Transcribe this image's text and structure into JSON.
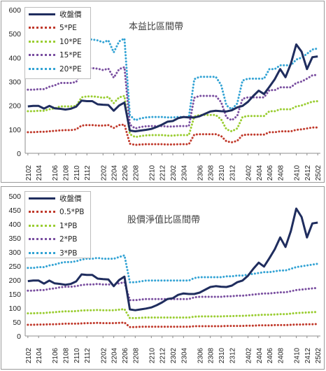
{
  "chart_data": [
    {
      "type": "line",
      "title": "本益比區間帶",
      "xlabel": "",
      "ylabel": "",
      "ylim": [
        0,
        600
      ],
      "yticks": [
        "0",
        "100",
        "200",
        "300",
        "400",
        "500",
        "600"
      ],
      "x_labels": [
        "2102",
        "2104",
        "2106",
        "2108",
        "2110",
        "2112",
        "2202",
        "2204",
        "2206",
        "2208",
        "2210",
        "2212",
        "2302",
        "2304",
        "2306",
        "2308",
        "2310",
        "2312",
        "2402",
        "2404",
        "2406",
        "2408",
        "2410",
        "2412",
        "2502"
      ],
      "legend_position": "top-left",
      "grid": false,
      "series": [
        {
          "name": "收盤價",
          "color": "#1f2d5e",
          "style": "solid",
          "values": [
            196,
            198,
            198,
            187,
            198,
            188,
            186,
            183,
            186,
            195,
            220,
            218,
            218,
            205,
            203,
            202,
            178,
            200,
            212,
            95,
            92,
            95,
            98,
            102,
            110,
            120,
            132,
            135,
            147,
            152,
            150,
            150,
            155,
            165,
            175,
            178,
            176,
            175,
            180,
            192,
            198,
            215,
            240,
            262,
            248,
            278,
            310,
            352,
            318,
            375,
            455,
            425,
            352,
            402,
            405
          ]
        },
        {
          "name": "5*PE",
          "color": "#c0392b",
          "style": "dotted",
          "values": [
            88,
            88,
            90,
            90,
            92,
            94,
            96,
            97,
            97,
            100,
            116,
            118,
            118,
            116,
            116,
            118,
            106,
            118,
            120,
            40,
            35,
            37,
            38,
            38,
            38,
            38,
            37,
            37,
            38,
            38,
            38,
            78,
            80,
            80,
            80,
            80,
            72,
            50,
            46,
            52,
            76,
            78,
            78,
            78,
            78,
            88,
            88,
            92,
            92,
            92,
            98,
            100,
            104,
            108,
            108
          ]
        },
        {
          "name": "10*PE",
          "color": "#9acd32",
          "style": "dotted",
          "values": [
            176,
            176,
            178,
            178,
            184,
            188,
            196,
            196,
            196,
            198,
            234,
            238,
            238,
            236,
            232,
            236,
            210,
            234,
            240,
            80,
            68,
            72,
            75,
            76,
            76,
            76,
            74,
            74,
            76,
            76,
            76,
            154,
            160,
            160,
            160,
            160,
            142,
            100,
            92,
            104,
            152,
            156,
            156,
            156,
            156,
            176,
            176,
            184,
            184,
            184,
            196,
            200,
            208,
            216,
            218
          ]
        },
        {
          "name": "15*PE",
          "color": "#7a4fa0",
          "style": "dotted",
          "values": [
            266,
            266,
            268,
            268,
            278,
            284,
            294,
            294,
            294,
            298,
            352,
            356,
            356,
            354,
            348,
            354,
            316,
            352,
            360,
            120,
            104,
            110,
            113,
            114,
            114,
            114,
            112,
            112,
            114,
            114,
            114,
            232,
            240,
            240,
            240,
            240,
            214,
            150,
            138,
            156,
            228,
            234,
            234,
            234,
            234,
            264,
            264,
            276,
            276,
            276,
            294,
            300,
            312,
            326,
            328
          ]
        },
        {
          "name": "20*PE",
          "color": "#33a3d4",
          "style": "dotted",
          "values": [
            356,
            356,
            358,
            358,
            370,
            378,
            392,
            392,
            392,
            396,
            470,
            476,
            476,
            472,
            464,
            472,
            422,
            468,
            480,
            160,
            138,
            146,
            150,
            152,
            152,
            152,
            150,
            150,
            152,
            152,
            152,
            310,
            320,
            320,
            320,
            320,
            286,
            200,
            184,
            208,
            304,
            312,
            312,
            312,
            312,
            352,
            352,
            368,
            368,
            368,
            392,
            400,
            416,
            434,
            438
          ]
        }
      ]
    },
    {
      "type": "line",
      "title": "股價淨值比區間帶",
      "xlabel": "",
      "ylabel": "",
      "ylim": [
        0,
        500
      ],
      "yticks": [
        "0",
        "50",
        "100",
        "150",
        "200",
        "250",
        "300",
        "350",
        "400",
        "450",
        "500"
      ],
      "x_labels": [
        "2102",
        "2104",
        "2106",
        "2108",
        "2110",
        "2112",
        "2202",
        "2204",
        "2206",
        "2208",
        "2210",
        "2212",
        "2302",
        "2304",
        "2306",
        "2308",
        "2310",
        "2312",
        "2402",
        "2404",
        "2406",
        "2408",
        "2410",
        "2412",
        "2502"
      ],
      "legend_position": "top-left",
      "grid": false,
      "series": [
        {
          "name": "收盤價",
          "color": "#1f2d5e",
          "style": "solid",
          "values": [
            196,
            198,
            198,
            187,
            198,
            188,
            186,
            183,
            186,
            195,
            220,
            218,
            218,
            205,
            203,
            202,
            178,
            200,
            212,
            95,
            92,
            95,
            98,
            102,
            110,
            120,
            132,
            135,
            147,
            152,
            150,
            150,
            155,
            165,
            175,
            178,
            176,
            175,
            180,
            192,
            198,
            215,
            240,
            262,
            248,
            278,
            310,
            352,
            318,
            375,
            455,
            425,
            352,
            402,
            405
          ]
        },
        {
          "name": "0.5*PB",
          "color": "#c0392b",
          "style": "dotted",
          "values": [
            40,
            40,
            41,
            41,
            42,
            42,
            43,
            44,
            44,
            44,
            45,
            46,
            46,
            47,
            46,
            46,
            46,
            47,
            48,
            32,
            32,
            33,
            33,
            33,
            33,
            33,
            33,
            33,
            33,
            33,
            33,
            35,
            35,
            35,
            35,
            35,
            35,
            36,
            36,
            36,
            36,
            37,
            37,
            38,
            38,
            38,
            39,
            39,
            39,
            40,
            41,
            41,
            42,
            42,
            43
          ]
        },
        {
          "name": "1*PB",
          "color": "#9acd32",
          "style": "dotted",
          "values": [
            81,
            81,
            82,
            82,
            84,
            85,
            87,
            88,
            88,
            89,
            91,
            92,
            92,
            93,
            92,
            92,
            92,
            94,
            96,
            64,
            64,
            65,
            66,
            66,
            66,
            66,
            66,
            66,
            66,
            66,
            66,
            69,
            70,
            70,
            70,
            70,
            70,
            71,
            71,
            72,
            72,
            73,
            74,
            75,
            76,
            76,
            77,
            78,
            78,
            80,
            82,
            83,
            84,
            85,
            86
          ]
        },
        {
          "name": "2*PB",
          "color": "#7a4fa0",
          "style": "dotted",
          "values": [
            162,
            162,
            164,
            164,
            168,
            170,
            174,
            176,
            176,
            178,
            182,
            184,
            184,
            186,
            184,
            184,
            184,
            188,
            192,
            128,
            128,
            130,
            132,
            132,
            132,
            132,
            132,
            132,
            132,
            132,
            132,
            138,
            140,
            140,
            140,
            140,
            140,
            142,
            142,
            144,
            144,
            146,
            148,
            150,
            152,
            152,
            154,
            156,
            156,
            160,
            164,
            166,
            168,
            170,
            172
          ]
        },
        {
          "name": "3*PB",
          "color": "#33a3d4",
          "style": "dotted",
          "values": [
            243,
            243,
            246,
            246,
            252,
            255,
            261,
            264,
            264,
            267,
            273,
            276,
            276,
            279,
            276,
            276,
            276,
            282,
            288,
            192,
            192,
            195,
            198,
            198,
            198,
            198,
            198,
            198,
            198,
            198,
            198,
            207,
            210,
            210,
            210,
            210,
            210,
            213,
            213,
            216,
            216,
            219,
            222,
            225,
            228,
            228,
            231,
            234,
            234,
            240,
            246,
            249,
            252,
            255,
            258
          ]
        }
      ]
    }
  ]
}
